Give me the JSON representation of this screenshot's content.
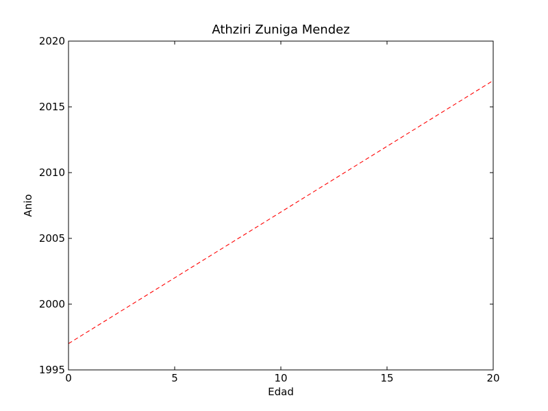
{
  "chart_data": {
    "type": "line",
    "title": "Athziri Zuniga Mendez",
    "xlabel": "Edad",
    "ylabel": "Anio",
    "xlim": [
      0,
      20
    ],
    "ylim": [
      1995,
      2020
    ],
    "xticks": [
      0,
      5,
      10,
      15,
      20
    ],
    "yticks": [
      1995,
      2000,
      2005,
      2010,
      2015,
      2020
    ],
    "grid": false,
    "series": [
      {
        "line_style": "dashed",
        "color": "#ff0000",
        "x": [
          0,
          20
        ],
        "y": [
          1997,
          2017
        ]
      }
    ]
  }
}
